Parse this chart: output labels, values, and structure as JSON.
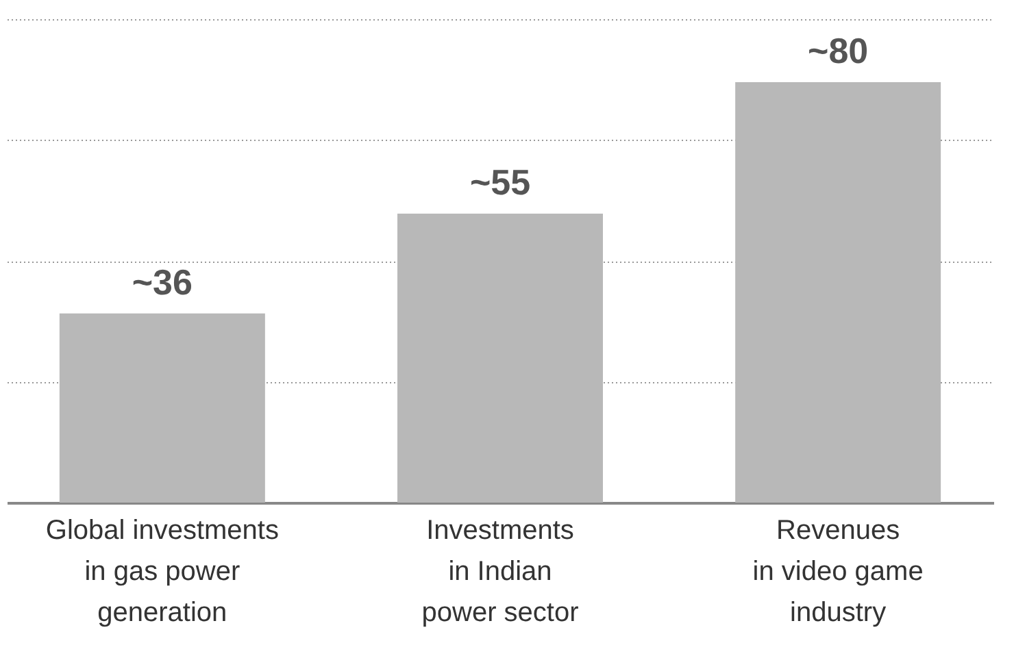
{
  "chart_data": {
    "type": "bar",
    "categories": [
      "Global investments\nin gas power\ngeneration",
      "Investments\nin Indian\npower sector",
      "Revenues\nin video game\nindustry"
    ],
    "values": [
      36,
      55,
      80
    ],
    "value_labels": [
      "~36",
      "~55",
      "~80"
    ],
    "color": "#b8b8b8",
    "ylim": [
      0,
      92
    ],
    "yticks": [
      {
        "value": 0,
        "label": null
      },
      {
        "value": 23,
        "label": null
      },
      {
        "value": 46,
        "label": null
      },
      {
        "value": 69,
        "label": null
      },
      {
        "value": 92,
        "label": null
      }
    ],
    "grid": "y",
    "tick_labels": "x"
  }
}
